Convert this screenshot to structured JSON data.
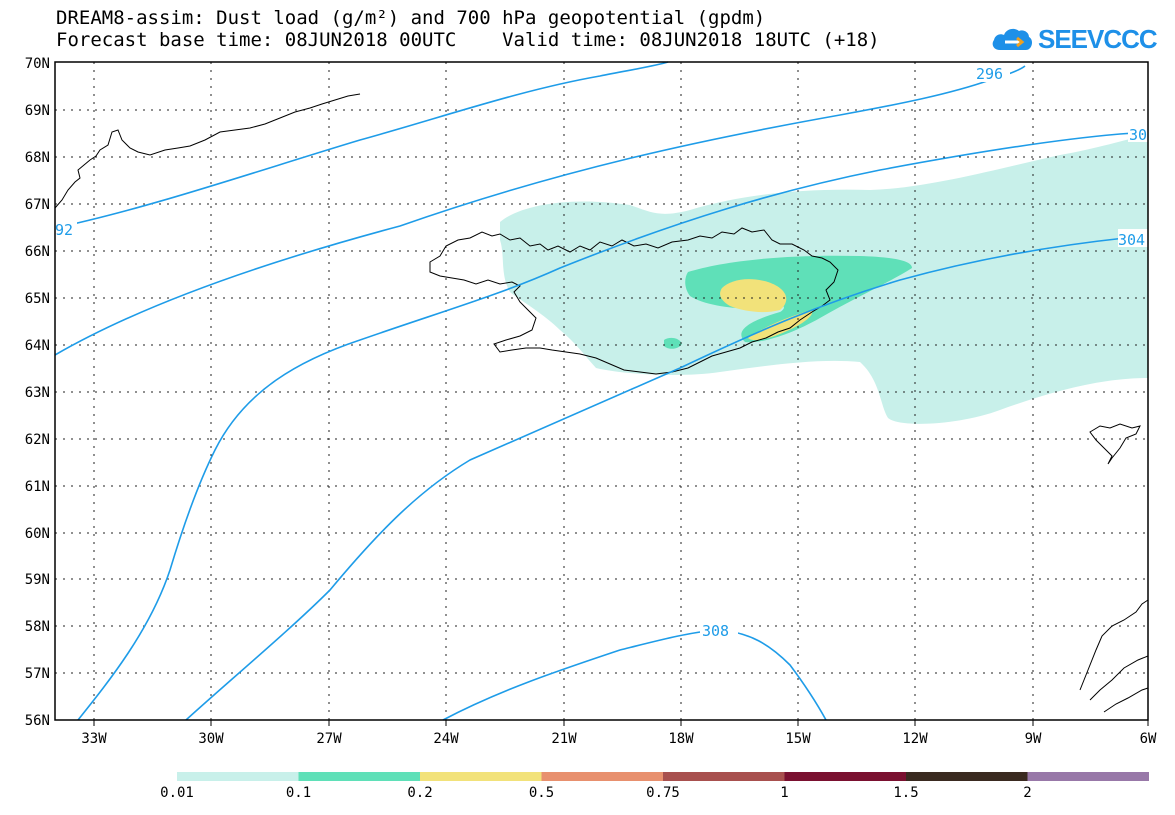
{
  "title_line1": "DREAM8-assim: Dust load (g/m²) and 700 hPa geopotential (gpdm)",
  "title_line2": "Forecast base time: 08JUN2018 00UTC    Valid time: 08JUN2018 18UTC (+18)",
  "logo_text": "SEEVCCC",
  "map": {
    "lat_labels": [
      "70N",
      "69N",
      "68N",
      "67N",
      "66N",
      "65N",
      "64N",
      "63N",
      "62N",
      "61N",
      "60N",
      "59N",
      "58N",
      "57N",
      "56N"
    ],
    "lon_labels": [
      "33W",
      "30W",
      "27W",
      "24W",
      "21W",
      "18W",
      "15W",
      "12W",
      "9W",
      "6W"
    ],
    "contour_labels": [
      "296",
      "30",
      "92",
      "304",
      "308"
    ],
    "contour_color": "#1e9ce8"
  },
  "legend": {
    "labels": [
      "0.01",
      "0.1",
      "0.2",
      "0.5",
      "0.75",
      "1",
      "1.5",
      "2"
    ],
    "colors": [
      "#c8f0ea",
      "#5fe0b8",
      "#f2e27a",
      "#e8906e",
      "#a8504e",
      "#7a1030",
      "#3a2a20",
      "#9878a8"
    ]
  }
}
